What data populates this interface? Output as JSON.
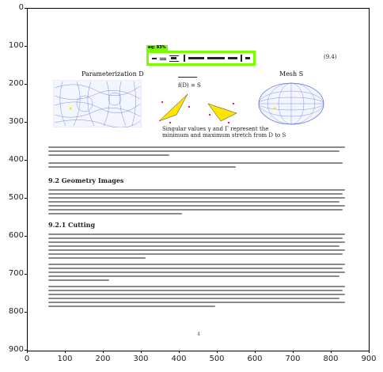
{
  "axis": {
    "y_ticks": [
      "0",
      "100",
      "200",
      "300",
      "400",
      "500",
      "600",
      "700",
      "800",
      "900"
    ],
    "x_ticks": [
      "0",
      "100",
      "200",
      "300",
      "400",
      "500",
      "600",
      "700",
      "800",
      "900"
    ]
  },
  "detection": {
    "tag": "eq: 83%",
    "color": "#7cfc00"
  },
  "document": {
    "equation_number": "(9.4)",
    "panel_left_title": "Parameterization D",
    "panel_right_title": "Mesh S",
    "mapping_label": "f(D) = S",
    "figure_caption": [
      "Singular values γ and Γ represent the",
      "minimum and maximum stretch from D to S"
    ],
    "section_heading": "9.2   Geometry Images",
    "subsection_heading": "9.2.1   Cutting",
    "page_number": "4"
  },
  "colors": {
    "frame": "#000000",
    "highlight": "#7cfc00",
    "mesh_blue": "#3a4fd0",
    "triangle_yellow": "#ffe400"
  }
}
